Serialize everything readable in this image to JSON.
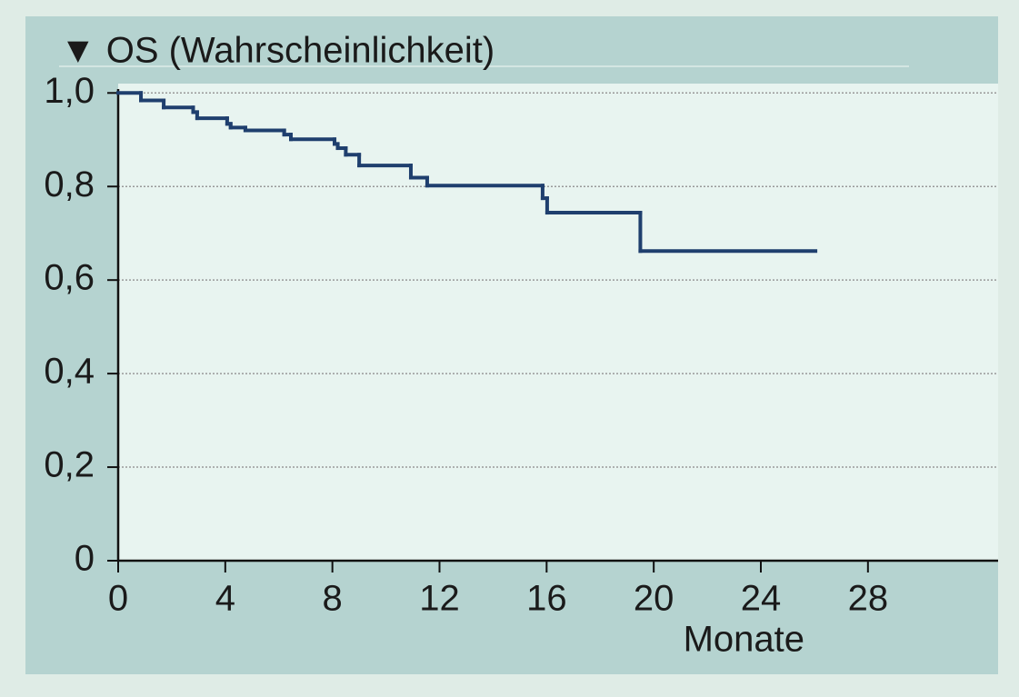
{
  "chart_data": {
    "type": "step",
    "title": "▼ OS (Wahrscheinlichkeit)",
    "x_label": "Monate",
    "color": "#1f3f6e",
    "x": [
      0,
      0.85,
      1.7,
      2.8,
      2.95,
      4.07,
      4.2,
      4.75,
      6.2,
      6.45,
      8.08,
      8.2,
      8.5,
      9.0,
      10.93,
      11.54,
      15.85,
      16.02,
      19.5,
      26.04
    ],
    "values": [
      1.0,
      0.984,
      0.969,
      0.959,
      0.946,
      0.934,
      0.926,
      0.92,
      0.911,
      0.901,
      0.891,
      0.882,
      0.868,
      0.845,
      0.819,
      0.802,
      0.775,
      0.744,
      0.662,
      0.662
    ],
    "xlim": [
      0,
      32.86
    ],
    "xticks": [
      0,
      4,
      8,
      12,
      16,
      20,
      24,
      28
    ],
    "ylim": [
      0,
      1.02
    ],
    "yticks": [
      0,
      {
        "value": 0.2,
        "label": "0,2"
      },
      {
        "value": 0.4,
        "label": "0,4"
      },
      {
        "value": 0.6,
        "label": "0,6"
      },
      {
        "value": 0.8,
        "label": "0,8"
      },
      {
        "value": 1.0,
        "label": "1,0"
      }
    ],
    "grid": true
  }
}
